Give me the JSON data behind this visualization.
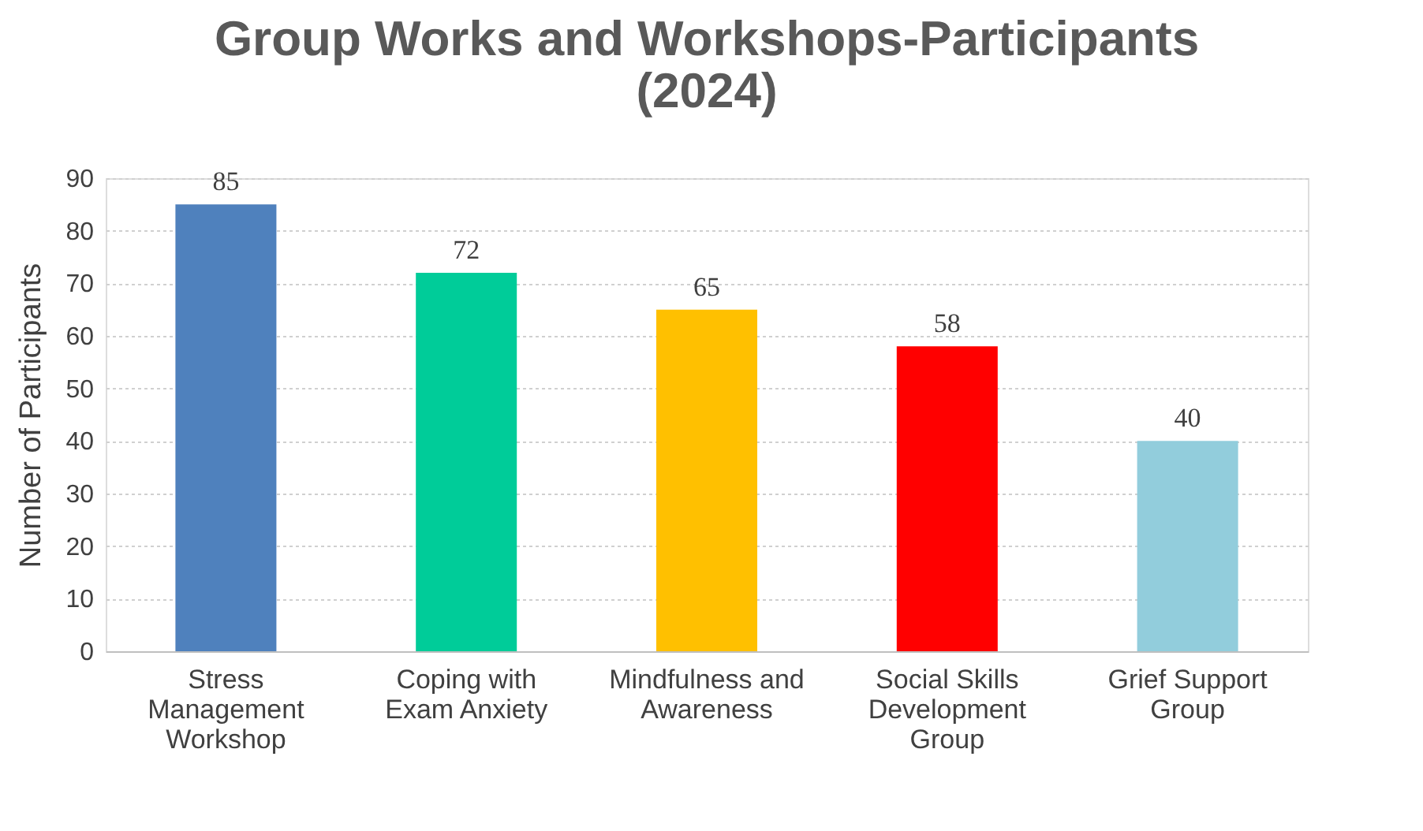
{
  "chart_data": {
    "type": "bar",
    "title": "Group Works and Workshops-Participants (2024)",
    "categories": [
      "Stress Management Workshop",
      "Coping with Exam Anxiety",
      "Mindfulness and Awareness",
      "Social Skills Development Group",
      "Grief Support Group"
    ],
    "values": [
      85,
      72,
      65,
      58,
      40
    ],
    "colors": [
      "#4f81bd",
      "#00cc99",
      "#ffc000",
      "#ff0000",
      "#92cddc"
    ],
    "ylabel": "Number of Participants",
    "ylim": [
      0,
      90
    ],
    "yticks": [
      0,
      10,
      20,
      30,
      40,
      50,
      60,
      70,
      80,
      90
    ],
    "grid": "y",
    "data_labels": true
  }
}
